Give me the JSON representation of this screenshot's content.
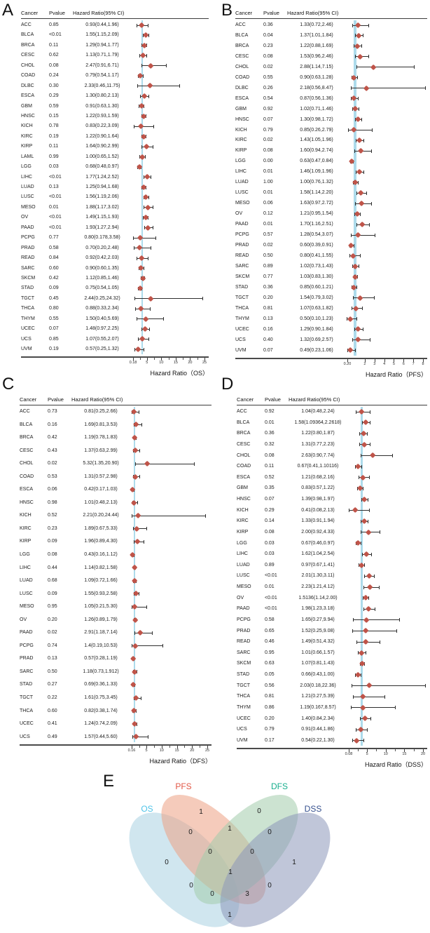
{
  "figure_title": "Pan-cancer Cox forest plots (OS, PFS, DFS, DSS) and Venn diagram of significant cancers",
  "chart_data": [
    {
      "type": "table",
      "subtype": "forest-plot",
      "panel": "A",
      "columns": [
        "Cancer",
        "Pvalue",
        "Hazard Ratio(95% CI)"
      ],
      "axis": {
        "min": 0.18,
        "max": 25,
        "ticks": [
          0.18,
          5,
          10,
          15,
          20,
          25
        ],
        "tick_labels": [
          "0.18",
          "5",
          "10",
          "15",
          "20",
          "25"
        ],
        "ref_line": 1,
        "scale": "sqrt",
        "label": "Hazard Ratio（OS）"
      },
      "marker_color": "#bf5449",
      "ref_line_color": "#a9d9ea",
      "rows": [
        [
          "ACC",
          "0.85",
          "0.93(0.44,1.96)"
        ],
        [
          "BLCA",
          "<0.01",
          "1.55(1.15,2.09)"
        ],
        [
          "BRCA",
          "0.11",
          "1.29(0.94,1.77)"
        ],
        [
          "CESC",
          "0.62",
          "1.13(0.71,1.79)"
        ],
        [
          "CHOL",
          "0.08",
          "2.47(0.91,6.71)"
        ],
        [
          "COAD",
          "0.24",
          "0.79(0.54,1.17)"
        ],
        [
          "DLBC",
          "0.30",
          "2.33(0.46,11.75)"
        ],
        [
          "ESCA",
          "0.29",
          "1.30(0.80,2.13)"
        ],
        [
          "GBM",
          "0.59",
          "0.91(0.63,1.30)"
        ],
        [
          "HNSC",
          "0.15",
          "1.22(0.93,1.59)"
        ],
        [
          "KICH",
          "0.78",
          "0.83(0.22,3.09)"
        ],
        [
          "KIRC",
          "0.19",
          "1.22(0.90,1.64)"
        ],
        [
          "KIRP",
          "0.11",
          "1.64(0.90,2.99)"
        ],
        [
          "LAML",
          "0.99",
          "1.00(0.65,1.52)"
        ],
        [
          "LGG",
          "0.03",
          "0.68(0.48,0.97)"
        ],
        [
          "LIHC",
          "<0.01",
          "1.77(1.24,2.52)"
        ],
        [
          "LUAD",
          "0.13",
          "1.25(0.94,1.68)"
        ],
        [
          "LUSC",
          "<0.01",
          "1.56(1.19,2.06)"
        ],
        [
          "MESO",
          "0.01",
          "1.88(1.17,3.02)"
        ],
        [
          "OV",
          "<0.01",
          "1.49(1.15,1.93)"
        ],
        [
          "PAAD",
          "<0.01",
          "1.93(1.27,2.94)"
        ],
        [
          "PCPG",
          "0.77",
          "0.80(0.178,3.58)"
        ],
        [
          "PRAD",
          "0.58",
          "0.70(0.20,2.48)"
        ],
        [
          "READ",
          "0.84",
          "0.92(0.42,2.03)"
        ],
        [
          "SARC",
          "0.60",
          "0.90(0.60,1.35)"
        ],
        [
          "SKCM",
          "0.42",
          "1.12(0.85,1.46)"
        ],
        [
          "STAD",
          "0.09",
          "0.75(0.54,1.05)"
        ],
        [
          "TGCT",
          "0.45",
          "2.44(0.25,24.32)"
        ],
        [
          "THCA",
          "0.80",
          "0.88(0.33,2.34)"
        ],
        [
          "THYM",
          "0.55",
          "1.50(0.40,5.69)"
        ],
        [
          "UCEC",
          "0.07",
          "1.48(0.97,2.25)"
        ],
        [
          "UCS",
          "0.85",
          "1.07(0.55,2.07)"
        ],
        [
          "UVM",
          "0.19",
          "0.57(0.25,1.32)"
        ]
      ]
    },
    {
      "type": "table",
      "subtype": "forest-plot",
      "panel": "B",
      "columns": [
        "Cancer",
        "Pvalue",
        "Hazard Ratio(95% CI)"
      ],
      "axis": {
        "min": 0.2,
        "max": 8,
        "ticks": [
          0.2,
          2,
          3,
          4,
          5,
          6,
          7,
          8
        ],
        "tick_labels": [
          "0.20",
          "2",
          "3",
          "4",
          "5",
          "6",
          "7",
          "8"
        ],
        "ref_line": 1,
        "scale": "linear",
        "label": "Hazard Ratio（PFS）"
      },
      "marker_color": "#bf5449",
      "ref_line_color": "#a9d9ea",
      "rows": [
        [
          "ACC",
          "0.36",
          "1.33(0.72,2.46)"
        ],
        [
          "BLCA",
          "0.04",
          "1.37(1.01,1.84)"
        ],
        [
          "BRCA",
          "0.23",
          "1.22(0.88,1.69)"
        ],
        [
          "CESC",
          "0.08",
          "1.53(0.96,2.46)"
        ],
        [
          "CHOL",
          "0.02",
          "2.88(1.14,7.15)"
        ],
        [
          "COAD",
          "0.55",
          "0.90(0.63,1.28)"
        ],
        [
          "DLBC",
          "0.26",
          "2.18(0.56,8.47)"
        ],
        [
          "ESCA",
          "0.54",
          "0.87(0.56,1.36)"
        ],
        [
          "GBM",
          "0.92",
          "1.02(0.71,1.46)"
        ],
        [
          "HNSC",
          "0.07",
          "1.30(0.98,1.72)"
        ],
        [
          "KICH",
          "0.79",
          "0.85(0.26,2.79)"
        ],
        [
          "KIRC",
          "0.02",
          "1.43(1.05,1.96)"
        ],
        [
          "KIRP",
          "0.08",
          "1.60(0.94,2.74)"
        ],
        [
          "LGG",
          "0.00",
          "0.63(0.47,0.84)"
        ],
        [
          "LIHC",
          "0.01",
          "1.46(1.09,1.96)"
        ],
        [
          "LUAD",
          "1.00",
          "1.00(0.76,1.32)"
        ],
        [
          "LUSC",
          "0.01",
          "1.58(1.14,2.20)"
        ],
        [
          "MESO",
          "0.06",
          "1.63(0.97,2.72)"
        ],
        [
          "OV",
          "0.12",
          "1.21(0.95,1.54)"
        ],
        [
          "PAAD",
          "0.01",
          "1.70(1.16,2.51)"
        ],
        [
          "PCPG",
          "0.57",
          "1.28(0.54,3.07)"
        ],
        [
          "PRAD",
          "0.02",
          "0.60(0.39,0.91)"
        ],
        [
          "READ",
          "0.50",
          "0.80(0.41,1.55)"
        ],
        [
          "SARC",
          "0.89",
          "1.02(0.73,1.43)"
        ],
        [
          "SKCM",
          "0.77",
          "1.03(0.83,1.30)"
        ],
        [
          "STAD",
          "0.36",
          "0.85(0.60,1.21)"
        ],
        [
          "TGCT",
          "0.20",
          "1.54(0.79,3.02)"
        ],
        [
          "THCA",
          "0.81",
          "1.07(0.63,1.82)"
        ],
        [
          "THYM",
          "0.13",
          "0.50(0.10,1.23)"
        ],
        [
          "UCEC",
          "0.16",
          "1.29(0.90,1.84)"
        ],
        [
          "UCS",
          "0.40",
          "1.32(0.69,2.57)"
        ],
        [
          "UVM",
          "0.07",
          "0.49(0.23,1.06)"
        ]
      ]
    },
    {
      "type": "table",
      "subtype": "forest-plot",
      "panel": "C",
      "columns": [
        "Cancer",
        "Pvalue",
        "Hazard Ratio(95% CI)"
      ],
      "axis": {
        "min": 0.16,
        "max": 25,
        "ticks": [
          0.16,
          5,
          10,
          15,
          20,
          25
        ],
        "tick_labels": [
          "0.16",
          "5",
          "10",
          "15",
          "20",
          "25"
        ],
        "ref_line": 1,
        "scale": "linear",
        "label": "Hazard Ratio（DFS）"
      },
      "marker_color": "#bf5449",
      "ref_line_color": "#a9d9ea",
      "rows": [
        [
          "ACC",
          "0.73",
          "0.81(0.25,2.66)"
        ],
        [
          "BLCA",
          "0.16",
          "1.69(0.81,3.53)"
        ],
        [
          "BRCA",
          "0.42",
          "1.19(0.78,1.83)"
        ],
        [
          "CESC",
          "0.43",
          "1.37(0.63,2.99)"
        ],
        [
          "CHOL",
          "0.02",
          "5.32(1.35,20.90)"
        ],
        [
          "COAD",
          "0.53",
          "1.31(0.57,2.98)"
        ],
        [
          "ESCA",
          "0.06",
          "0.42(0.17,1.03)"
        ],
        [
          "HNSC",
          "0.98",
          "1.01(0.48,2.13)"
        ],
        [
          "KICH",
          "0.52",
          "2.21(0.20,24.44)"
        ],
        [
          "KIRC",
          "0.23",
          "1.89(0.67,5.33)"
        ],
        [
          "KIRP",
          "0.09",
          "1.96(0.89,4.30)"
        ],
        [
          "LGG",
          "0.08",
          "0.43(0.16,1.12)"
        ],
        [
          "LIHC",
          "0.44",
          "1.14(0.82,1.58)"
        ],
        [
          "LUAD",
          "0.68",
          "1.09(0.72,1.66)"
        ],
        [
          "LUSC",
          "0.09",
          "1.55(0.93,2.58)"
        ],
        [
          "MESO",
          "0.95",
          "1.05(0.21,5.30)"
        ],
        [
          "OV",
          "0.20",
          "1.26(0.89,1.79)"
        ],
        [
          "PAAD",
          "0.02",
          "2.91(1.18,7.14)"
        ],
        [
          "PCPG",
          "0.74",
          "1.4(0.19,10.53)"
        ],
        [
          "PRAD",
          "0.13",
          "0.57(0.28,1.19)"
        ],
        [
          "SARC",
          "0.50",
          "1.18(0.73,1.912)"
        ],
        [
          "STAD",
          "0.27",
          "0.69(0.36,1.33)"
        ],
        [
          "TGCT",
          "0.22",
          "1.61(0.75,3.45)"
        ],
        [
          "THCA",
          "0.60",
          "0.82(0.38,1.74)"
        ],
        [
          "UCEC",
          "0.41",
          "1.24(0.74,2.09)"
        ],
        [
          "UCS",
          "0.49",
          "1.57(0.44,5.60)"
        ]
      ]
    },
    {
      "type": "table",
      "subtype": "forest-plot",
      "panel": "D",
      "columns": [
        "Cancer",
        "Pvalue",
        "Hazard Ratio(95% CI)"
      ],
      "axis": {
        "min": 0.08,
        "max": 20,
        "ticks": [
          0.08,
          5,
          10,
          15,
          20
        ],
        "tick_labels": [
          "0.08",
          "5",
          "10",
          "15",
          "20"
        ],
        "ref_line": 1,
        "scale": "sqrt",
        "label": "Hazard Ratio（DSS）"
      },
      "marker_color": "#bf5449",
      "ref_line_color": "#a9d9ea",
      "rows": [
        [
          "ACC",
          "0.92",
          "1.04(0.48,2.24)"
        ],
        [
          "BLCA",
          "0.01",
          "1.58(1.09364,2.2618)"
        ],
        [
          "BRCA",
          "0.36",
          "1.22(0.80,1.87)"
        ],
        [
          "CESC",
          "0.32",
          "1.31(0.77,2.23)"
        ],
        [
          "CHOL",
          "0.08",
          "2.63(0.90,7.74)"
        ],
        [
          "COAD",
          "0.11",
          "0.67(0.41,1.10116)"
        ],
        [
          "ESCA",
          "0.52",
          "1.21(0.68,2.16)"
        ],
        [
          "GBM",
          "0.35",
          "0.83(0.57,1.22)"
        ],
        [
          "HNSC",
          "0.07",
          "1.39(0.98,1.97)"
        ],
        [
          "KICH",
          "0.29",
          "0.41(0.08,2.13)"
        ],
        [
          "KIRC",
          "0.14",
          "1.33(0.91,1.94)"
        ],
        [
          "KIRP",
          "0.08",
          "2.00(0.92,4.33)"
        ],
        [
          "LGG",
          "0.03",
          "0.67(0.46,0.97)"
        ],
        [
          "LIHC",
          "0.03",
          "1.62(1.04,2.54)"
        ],
        [
          "LUAD",
          "0.89",
          "0.97(0.67,1.41)"
        ],
        [
          "LUSC",
          "<0.01",
          "2.01(1.30,3.11)"
        ],
        [
          "MESO",
          "0.01",
          "2.23(1.21,4.12)"
        ],
        [
          "OV",
          "<0.01",
          "1.5136(1.14,2.00)"
        ],
        [
          "PAAD",
          "<0.01",
          "1.98(1.23,3.18)"
        ],
        [
          "PCPG",
          "0.58",
          "1.65(0.27,9.94)"
        ],
        [
          "PRAD",
          "0.65",
          "1.52(0.25,9.08)"
        ],
        [
          "READ",
          "0.46",
          "1.49(0.51,4.32)"
        ],
        [
          "SARC",
          "0.95",
          "1.01(0.66,1.57)"
        ],
        [
          "SKCM",
          "0.63",
          "1.07(0.81,1.43)"
        ],
        [
          "STAD",
          "0.05",
          "0.66(0.43,1.00)"
        ],
        [
          "TGCT",
          "0.56",
          "2.03(0.18,22.36)"
        ],
        [
          "THCA",
          "0.81",
          "1.21(0.27,5.39)"
        ],
        [
          "THYM",
          "0.86",
          "1.19(0.167,8.57)"
        ],
        [
          "UCEC",
          "0.20",
          "1.40(0.84,2.34)"
        ],
        [
          "UCS",
          "0.79",
          "0.91(0.44,1.86)"
        ],
        [
          "UVM",
          "0.17",
          "0.54(0.22,1.30)"
        ]
      ]
    },
    {
      "type": "venn",
      "panel": "E",
      "sets": [
        {
          "name": "OS",
          "label_color": "#4ec3e8",
          "fill": "#a9d2e2"
        },
        {
          "name": "PFS",
          "label_color": "#e25746",
          "fill": "#eca083"
        },
        {
          "name": "DFS",
          "label_color": "#16ae8d",
          "fill": "#a2ccac"
        },
        {
          "name": "DSS",
          "label_color": "#35508e",
          "fill": "#8c98b9"
        }
      ],
      "regions": [
        {
          "sets": "OS",
          "count": 0
        },
        {
          "sets": "PFS",
          "count": 1
        },
        {
          "sets": "DFS",
          "count": 0
        },
        {
          "sets": "DSS",
          "count": 1
        },
        {
          "sets": "OS&PFS",
          "count": 0
        },
        {
          "sets": "PFS&DFS",
          "count": 1
        },
        {
          "sets": "DFS&DSS",
          "count": 0
        },
        {
          "sets": "OS&DFS",
          "count": 0
        },
        {
          "sets": "PFS&DSS",
          "count": 0
        },
        {
          "sets": "OS&DSS",
          "count": 1
        },
        {
          "sets": "OS&PFS&DFS",
          "count": 0
        },
        {
          "sets": "PFS&DFS&DSS",
          "count": 0
        },
        {
          "sets": "OS&DFS&DSS",
          "count": 0
        },
        {
          "sets": "OS&PFS&DSS",
          "count": 3
        },
        {
          "sets": "OS&PFS&DFS&DSS",
          "count": 1
        }
      ]
    }
  ]
}
